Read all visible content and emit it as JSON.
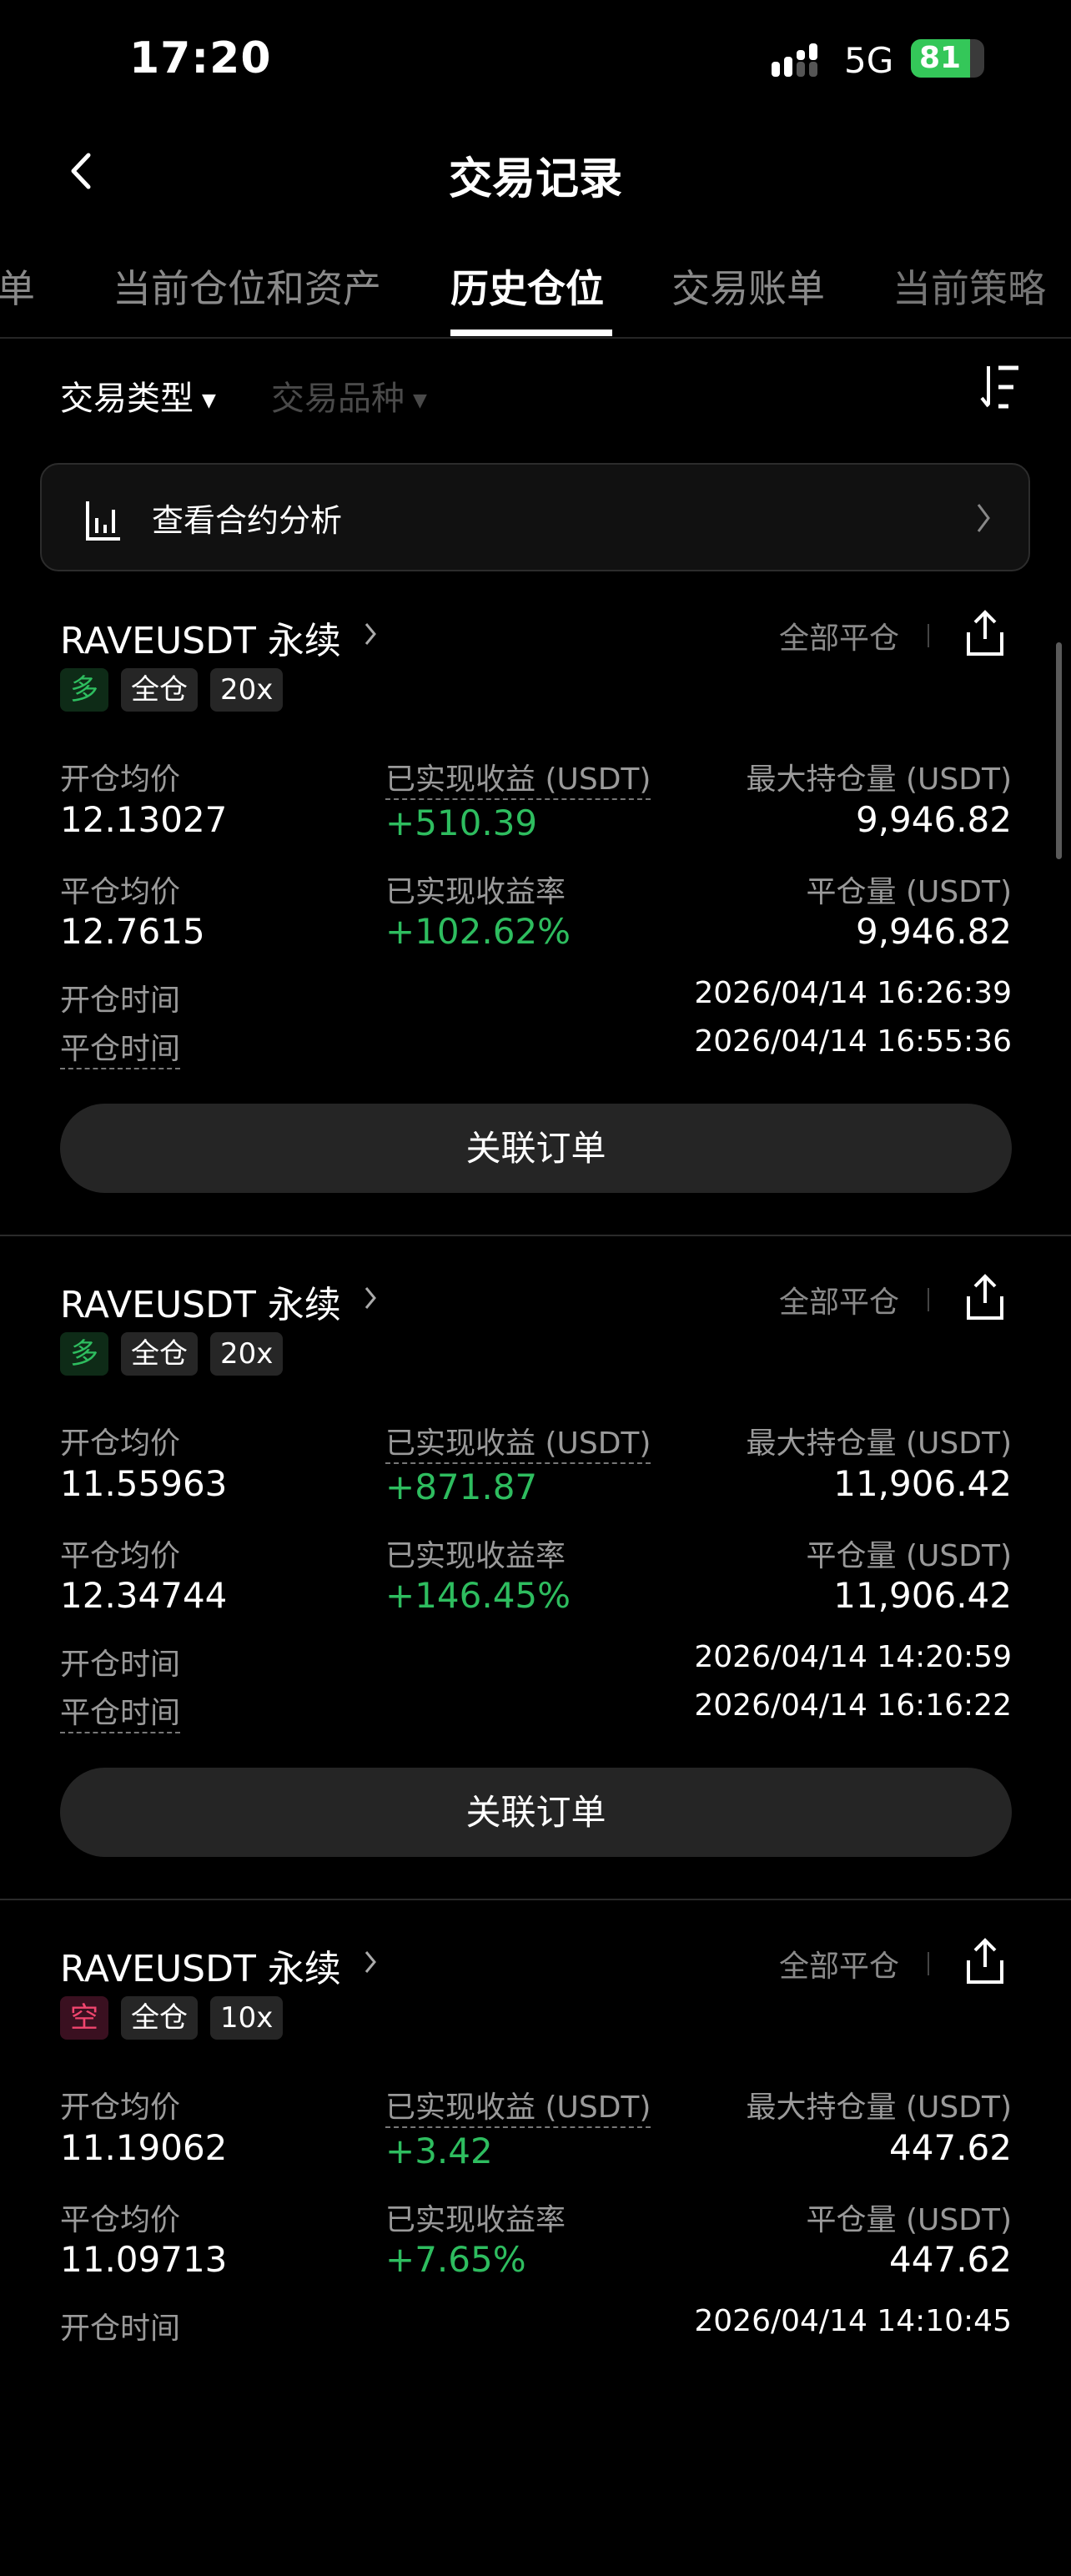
{
  "status_bar": {
    "time": "17:20",
    "network": "5G",
    "battery": "81",
    "battery_level": 81,
    "battery_color": "#34c759"
  },
  "nav": {
    "title": "交易记录"
  },
  "tabs": [
    {
      "label": "订单"
    },
    {
      "label": "当前仓位和资产"
    },
    {
      "label": "历史仓位",
      "active": true
    },
    {
      "label": "交易账单"
    },
    {
      "label": "当前策略"
    }
  ],
  "filters": {
    "type": "交易类型",
    "symbol": "交易品种"
  },
  "analysis": {
    "label": "查看合约分析"
  },
  "labels": {
    "open_avg": "开仓均价",
    "realized_pnl": "已实现收益 (USDT)",
    "max_position": "最大持仓量 (USDT)",
    "close_avg": "平仓均价",
    "realized_rate": "已实现收益率",
    "close_amount": "平仓量 (USDT)",
    "open_time": "开仓时间",
    "close_time": "平仓时间",
    "close_all": "全部平仓",
    "related_orders": "关联订单"
  },
  "colors": {
    "profit": "#2ebd5f",
    "long": "#2ebd5f",
    "short": "#f0456e"
  },
  "positions": [
    {
      "symbol": "RAVEUSDT 永续",
      "side": "多",
      "side_type": "long",
      "margin": "全仓",
      "leverage": "20x",
      "open_avg": "12.13027",
      "realized_pnl": "+510.39",
      "max_position": "9,946.82",
      "close_avg": "12.7615",
      "realized_rate": "+102.62%",
      "close_amount": "9,946.82",
      "open_time": "2026/04/14 16:26:39",
      "close_time": "2026/04/14 16:55:36"
    },
    {
      "symbol": "RAVEUSDT 永续",
      "side": "多",
      "side_type": "long",
      "margin": "全仓",
      "leverage": "20x",
      "open_avg": "11.55963",
      "realized_pnl": "+871.87",
      "max_position": "11,906.42",
      "close_avg": "12.34744",
      "realized_rate": "+146.45%",
      "close_amount": "11,906.42",
      "open_time": "2026/04/14 14:20:59",
      "close_time": "2026/04/14 16:16:22"
    },
    {
      "symbol": "RAVEUSDT 永续",
      "side": "空",
      "side_type": "short",
      "margin": "全仓",
      "leverage": "10x",
      "open_avg": "11.19062",
      "realized_pnl": "+3.42",
      "max_position": "447.62",
      "close_avg": "11.09713",
      "realized_rate": "+7.65%",
      "close_amount": "447.62",
      "open_time": "2026/04/14 14:10:45"
    }
  ]
}
